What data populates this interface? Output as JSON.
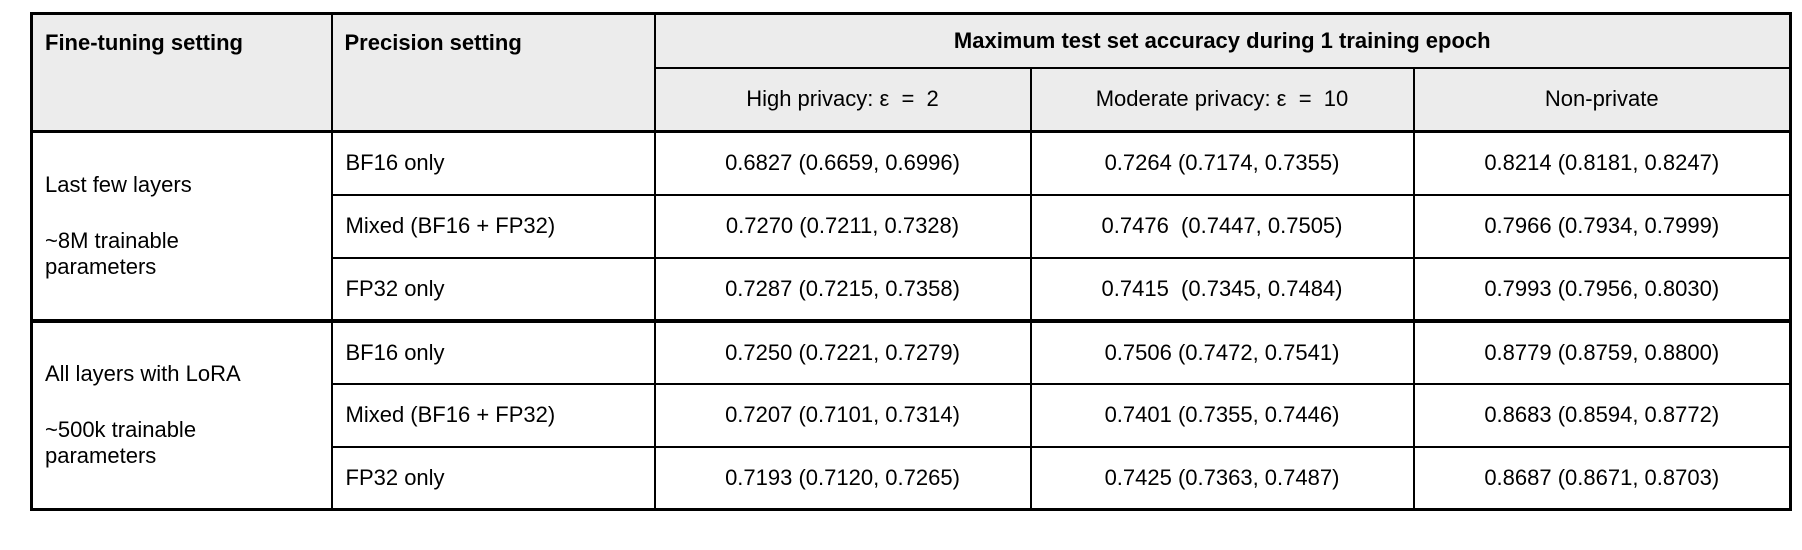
{
  "chart_data": {
    "type": "table",
    "title": "Maximum test set accuracy during 1 training epoch",
    "header": {
      "col_fine_tuning": "Fine-tuning setting",
      "col_precision": "Precision setting",
      "col_accuracy_span": "Maximum test set accuracy during 1 training epoch",
      "sub_high_privacy": "High privacy: ε  =  2",
      "sub_moderate_privacy": "Moderate privacy: ε  =  10",
      "sub_non_private": "Non-private"
    },
    "groups": [
      {
        "setting_title": "Last few layers",
        "setting_sub": "~8M trainable\nparameters",
        "rows": [
          {
            "precision": "BF16 only",
            "high_privacy": "0.6827 (0.6659, 0.6996)",
            "moderate_privacy": "0.7264 (0.7174, 0.7355)",
            "non_private": "0.8214 (0.8181, 0.8247)"
          },
          {
            "precision": "Mixed (BF16 + FP32)",
            "high_privacy": "0.7270 (0.7211, 0.7328)",
            "moderate_privacy": "0.7476  (0.7447, 0.7505)",
            "non_private": "0.7966 (0.7934, 0.7999)"
          },
          {
            "precision": "FP32 only",
            "high_privacy": "0.7287 (0.7215, 0.7358)",
            "moderate_privacy": "0.7415  (0.7345, 0.7484)",
            "non_private": "0.7993 (0.7956, 0.8030)"
          }
        ]
      },
      {
        "setting_title": "All layers with LoRA",
        "setting_sub": "~500k trainable\nparameters",
        "rows": [
          {
            "precision": "BF16 only",
            "high_privacy": "0.7250 (0.7221, 0.7279)",
            "moderate_privacy": "0.7506 (0.7472, 0.7541)",
            "non_private": "0.8779 (0.8759, 0.8800)"
          },
          {
            "precision": "Mixed (BF16 + FP32)",
            "high_privacy": "0.7207 (0.7101, 0.7314)",
            "moderate_privacy": "0.7401 (0.7355, 0.7446)",
            "non_private": "0.8683 (0.8594, 0.8772)"
          },
          {
            "precision": "FP32 only",
            "high_privacy": "0.7193 (0.7120, 0.7265)",
            "moderate_privacy": "0.7425 (0.7363, 0.7487)",
            "non_private": "0.8687 (0.8671, 0.8703)"
          }
        ]
      }
    ],
    "colors": {
      "header_bg": "#ececec",
      "border": "#000000",
      "background": "#ffffff"
    }
  }
}
